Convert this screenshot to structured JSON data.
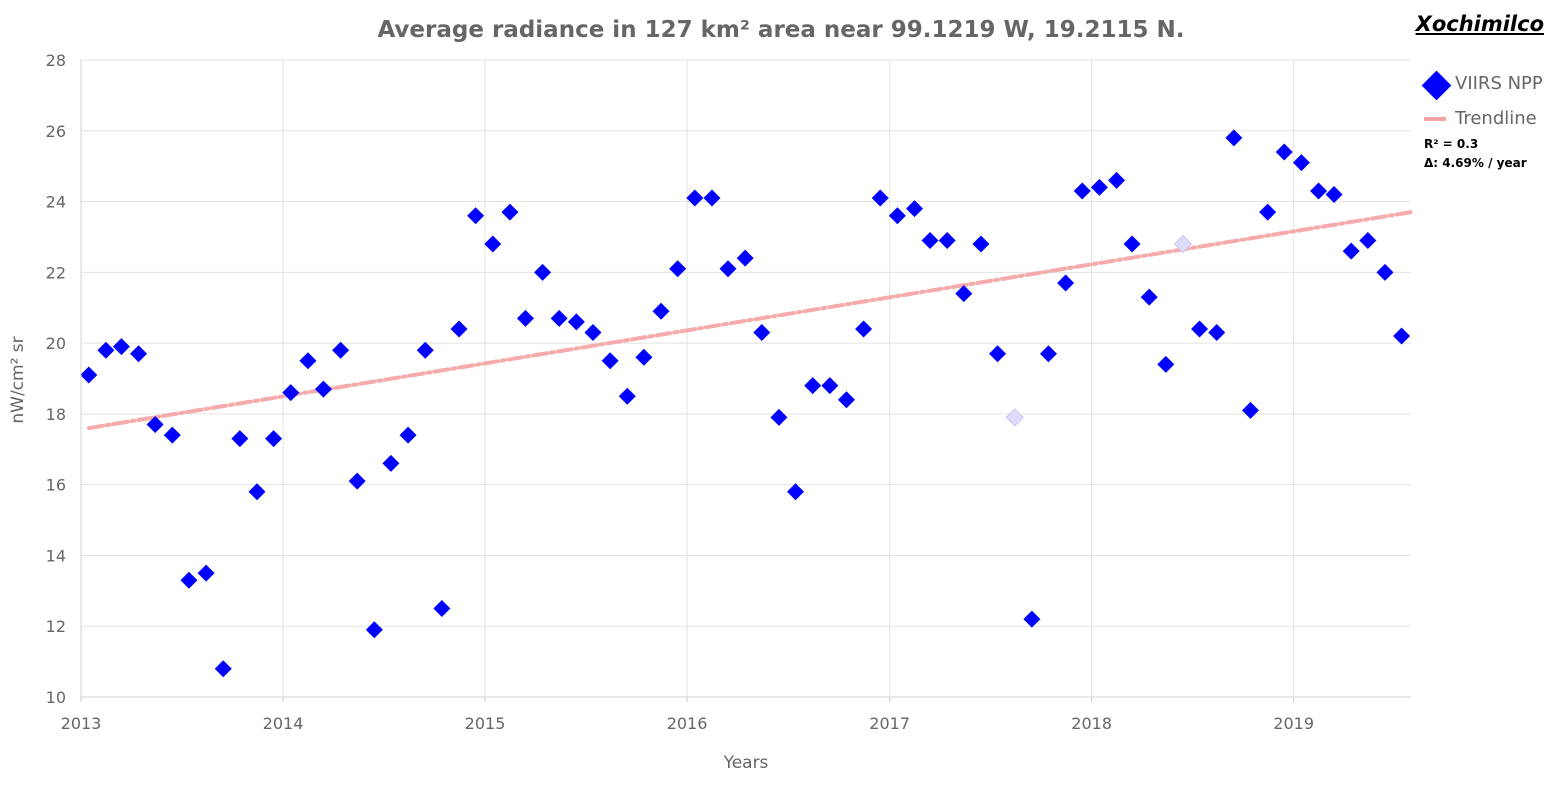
{
  "place_name": "Xochimilco",
  "legend": {
    "series_label": "VIIRS NPP",
    "trend_label": "Trendline",
    "r2_text": "R² = 0.3",
    "delta_text": "Δ: 4.69% / year"
  },
  "colors": {
    "points": "#0000ff",
    "faded_points": "#dcdcfa",
    "trendline": "#f4a3a3",
    "grid": "#e3e3e3",
    "text": "#666666"
  },
  "chart_data": {
    "type": "scatter",
    "title": "Average radiance in 127 km² area near 99.1219 W, 19.2115 N.",
    "xlabel": "Years",
    "ylabel": "nW/cm² sr",
    "xlim": [
      "2013-01-01",
      "2019-08-01"
    ],
    "ylim": [
      10,
      28
    ],
    "x_ticks": [
      "2013",
      "2014",
      "2015",
      "2016",
      "2017",
      "2018",
      "2019"
    ],
    "y_ticks": [
      10,
      12,
      14,
      16,
      18,
      20,
      22,
      24,
      26,
      28
    ],
    "grid": true,
    "legend_position": "top-right",
    "trendline": {
      "start": [
        "2013-01-01",
        17.6
      ],
      "end": [
        "2019-08-01",
        23.7
      ]
    },
    "series": [
      {
        "name": "VIIRS NPP",
        "points": [
          [
            "2013-01",
            19.1
          ],
          [
            "2013-02",
            19.8
          ],
          [
            "2013-03",
            19.9
          ],
          [
            "2013-04",
            19.7
          ],
          [
            "2013-05",
            17.7
          ],
          [
            "2013-06",
            17.4
          ],
          [
            "2013-07",
            13.3
          ],
          [
            "2013-08",
            13.5
          ],
          [
            "2013-09",
            10.8
          ],
          [
            "2013-10",
            17.3
          ],
          [
            "2013-11",
            15.8
          ],
          [
            "2013-12",
            17.3
          ],
          [
            "2014-01",
            18.6
          ],
          [
            "2014-02",
            19.5
          ],
          [
            "2014-03",
            18.7
          ],
          [
            "2014-04",
            19.8
          ],
          [
            "2014-05",
            16.1
          ],
          [
            "2014-06",
            11.9
          ],
          [
            "2014-07",
            16.6
          ],
          [
            "2014-08",
            17.4
          ],
          [
            "2014-09",
            19.8
          ],
          [
            "2014-10",
            12.5
          ],
          [
            "2014-11",
            20.4
          ],
          [
            "2014-12",
            23.6
          ],
          [
            "2015-01",
            22.8
          ],
          [
            "2015-02",
            23.7
          ],
          [
            "2015-03",
            20.7
          ],
          [
            "2015-04",
            22.0
          ],
          [
            "2015-05",
            20.7
          ],
          [
            "2015-06",
            20.6
          ],
          [
            "2015-07",
            20.3
          ],
          [
            "2015-08",
            19.5
          ],
          [
            "2015-09",
            18.5
          ],
          [
            "2015-10",
            19.6
          ],
          [
            "2015-11",
            20.9
          ],
          [
            "2015-12",
            22.1
          ],
          [
            "2016-01",
            24.1
          ],
          [
            "2016-02",
            24.1
          ],
          [
            "2016-03",
            22.1
          ],
          [
            "2016-04",
            22.4
          ],
          [
            "2016-05",
            20.3
          ],
          [
            "2016-06",
            17.9
          ],
          [
            "2016-07",
            15.8
          ],
          [
            "2016-08",
            18.8
          ],
          [
            "2016-09",
            18.8
          ],
          [
            "2016-10",
            18.4
          ],
          [
            "2016-11",
            20.4
          ],
          [
            "2016-12",
            24.1
          ],
          [
            "2017-01",
            23.6
          ],
          [
            "2017-02",
            23.8
          ],
          [
            "2017-03",
            22.9
          ],
          [
            "2017-04",
            22.9
          ],
          [
            "2017-05",
            21.4
          ],
          [
            "2017-06",
            22.8
          ],
          [
            "2017-07",
            19.7
          ],
          [
            "2017-08",
            17.9,
            "faded"
          ],
          [
            "2017-09",
            12.2
          ],
          [
            "2017-10",
            19.7
          ],
          [
            "2017-11",
            21.7
          ],
          [
            "2017-12",
            24.3
          ],
          [
            "2018-01",
            24.4
          ],
          [
            "2018-02",
            24.6
          ],
          [
            "2018-03",
            22.8
          ],
          [
            "2018-04",
            21.3
          ],
          [
            "2018-05",
            19.4
          ],
          [
            "2018-06",
            22.8,
            "faded"
          ],
          [
            "2018-07",
            20.4
          ],
          [
            "2018-08",
            20.3
          ],
          [
            "2018-09",
            25.8
          ],
          [
            "2018-10",
            18.1
          ],
          [
            "2018-11",
            23.7
          ],
          [
            "2018-12",
            25.4
          ],
          [
            "2019-01",
            25.1
          ],
          [
            "2019-02",
            24.3
          ],
          [
            "2019-03",
            24.2
          ],
          [
            "2019-04",
            22.6
          ],
          [
            "2019-05",
            22.9
          ],
          [
            "2019-06",
            22.0
          ],
          [
            "2019-07",
            20.2
          ]
        ]
      }
    ]
  }
}
